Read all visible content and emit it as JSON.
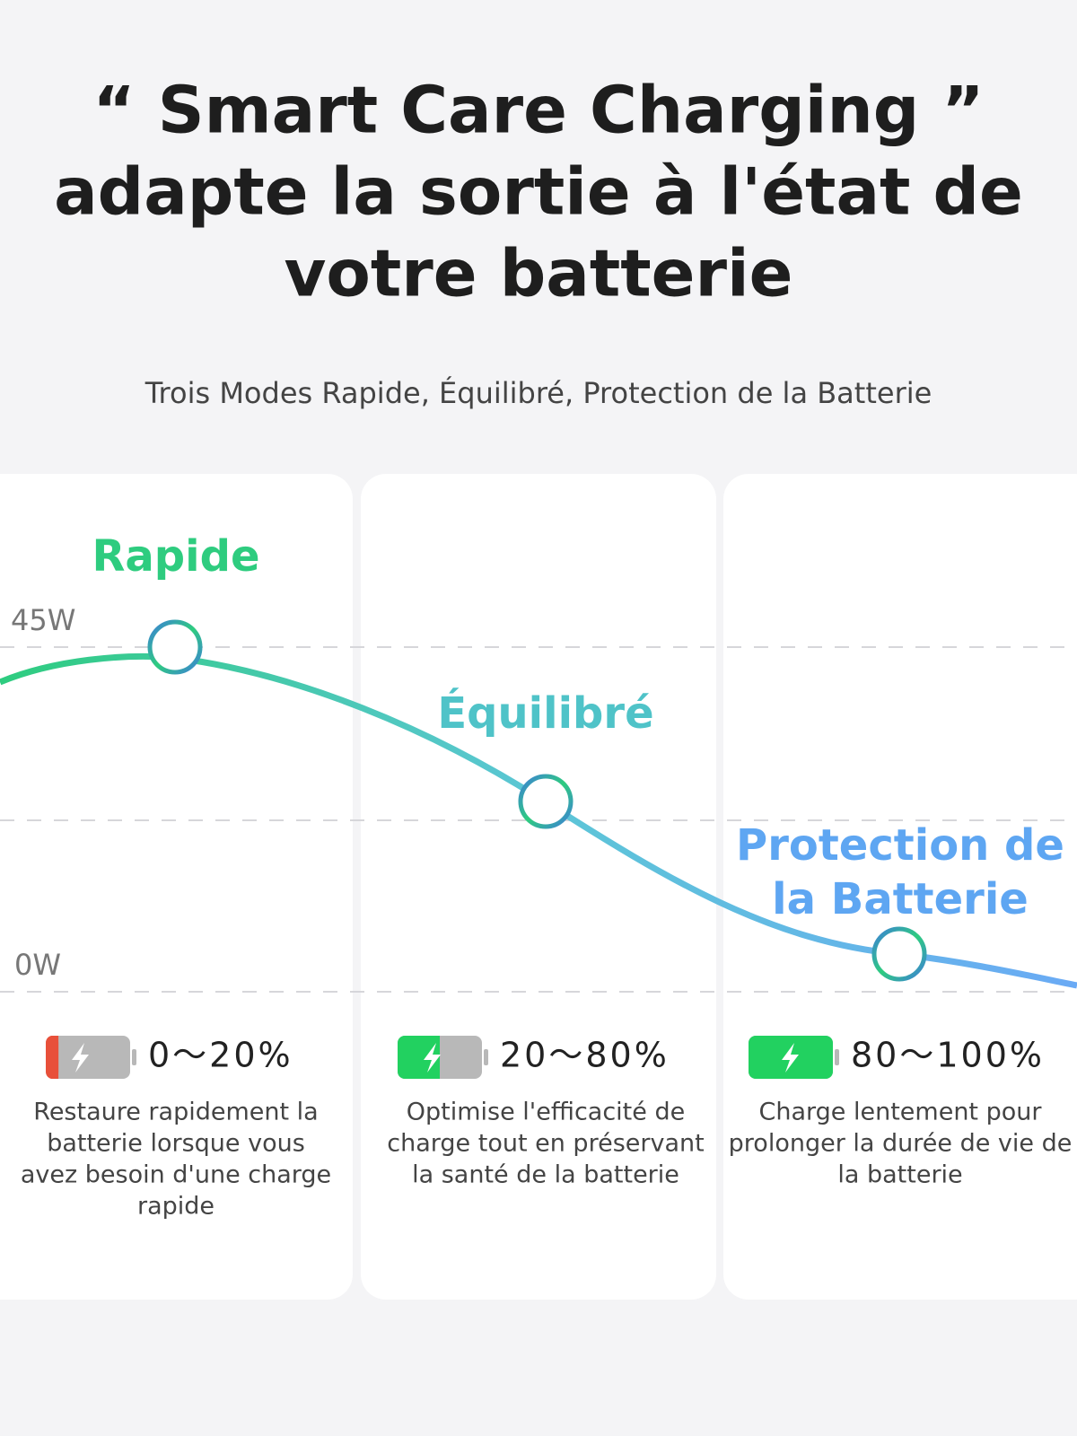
{
  "header": {
    "title_lines": [
      "“ Smart Care Charging ”",
      "adapte la sortie à l'état de",
      "votre batterie"
    ],
    "subtitle": "Trois Modes Rapide, Équilibré, Protection de la Batterie"
  },
  "graph": {
    "axis_labels": [
      "45W",
      "0W"
    ]
  },
  "modes": [
    {
      "name_lines": [
        "Rapide"
      ],
      "range": "0～20%",
      "description_lines": [
        "Restaure rapidement la",
        "batterie lorsque vous",
        "avez besoin d'une charge",
        "rapide"
      ]
    },
    {
      "name_lines": [
        "Équilibré"
      ],
      "range": "20～80%",
      "description_lines": [
        "Optimise l'efficacité de",
        "charge tout en préservant",
        "la santé de la batterie"
      ]
    },
    {
      "name_lines": [
        "Protection de",
        "la Batterie"
      ],
      "range": "80～100%",
      "description_lines": [
        "Charge lentement pour",
        "prolonger la durée de vie de",
        "la batterie"
      ]
    }
  ]
}
